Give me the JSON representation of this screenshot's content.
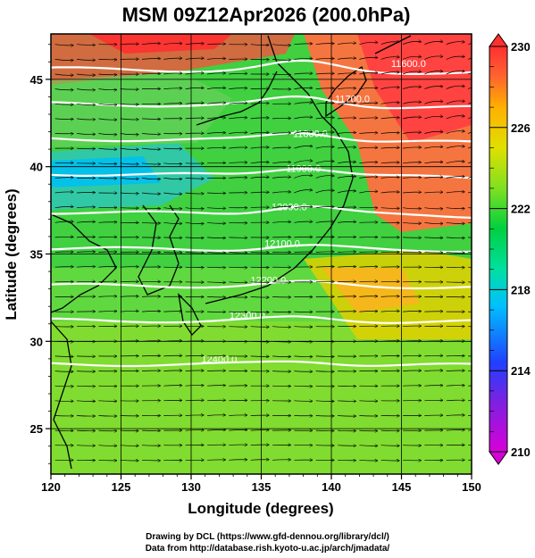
{
  "title": "MSM 09Z12Apr2026 (200.0hPa)",
  "x_axis": {
    "label": "Longitude (degrees)",
    "min": 120,
    "max": 150,
    "ticks": [
      "120",
      "125",
      "130",
      "135",
      "140",
      "145",
      "150"
    ]
  },
  "y_axis": {
    "label": "Latitude  (degrees)",
    "min": 22.4,
    "max": 47.6,
    "ticks": [
      "25",
      "30",
      "35",
      "40",
      "45"
    ]
  },
  "colorbar": {
    "min": 210,
    "max": 230,
    "labels": [
      "230",
      "226",
      "222",
      "218",
      "214",
      "210"
    ],
    "colors": [
      "#d800d8",
      "#8a2be2",
      "#2050ff",
      "#00c0ff",
      "#00e0a0",
      "#00d040",
      "#80e020",
      "#e0e000",
      "#ffb000",
      "#ff6030",
      "#ff3030"
    ]
  },
  "contours": [
    {
      "label": "11600.0",
      "lat": 45.6
    },
    {
      "label": "11700.0",
      "lat": 43.6
    },
    {
      "label": "11800.0",
      "lat": 41.6
    },
    {
      "label": "11900.0",
      "lat": 39.6
    },
    {
      "label": "12000.0",
      "lat": 37.4
    },
    {
      "label": "12100.0",
      "lat": 35.3
    },
    {
      "label": "12200.0",
      "lat": 33.2
    },
    {
      "label": "12300.0",
      "lat": 31.2
    },
    {
      "label": "12400.0",
      "lat": 28.7
    }
  ],
  "credits": [
    "Drawing by DCL (https://www.gfd-dennou.org/library/dcl/)",
    "Data from http://database.rish.kyoto-u.ac.jp/arch/jmadata/"
  ]
}
